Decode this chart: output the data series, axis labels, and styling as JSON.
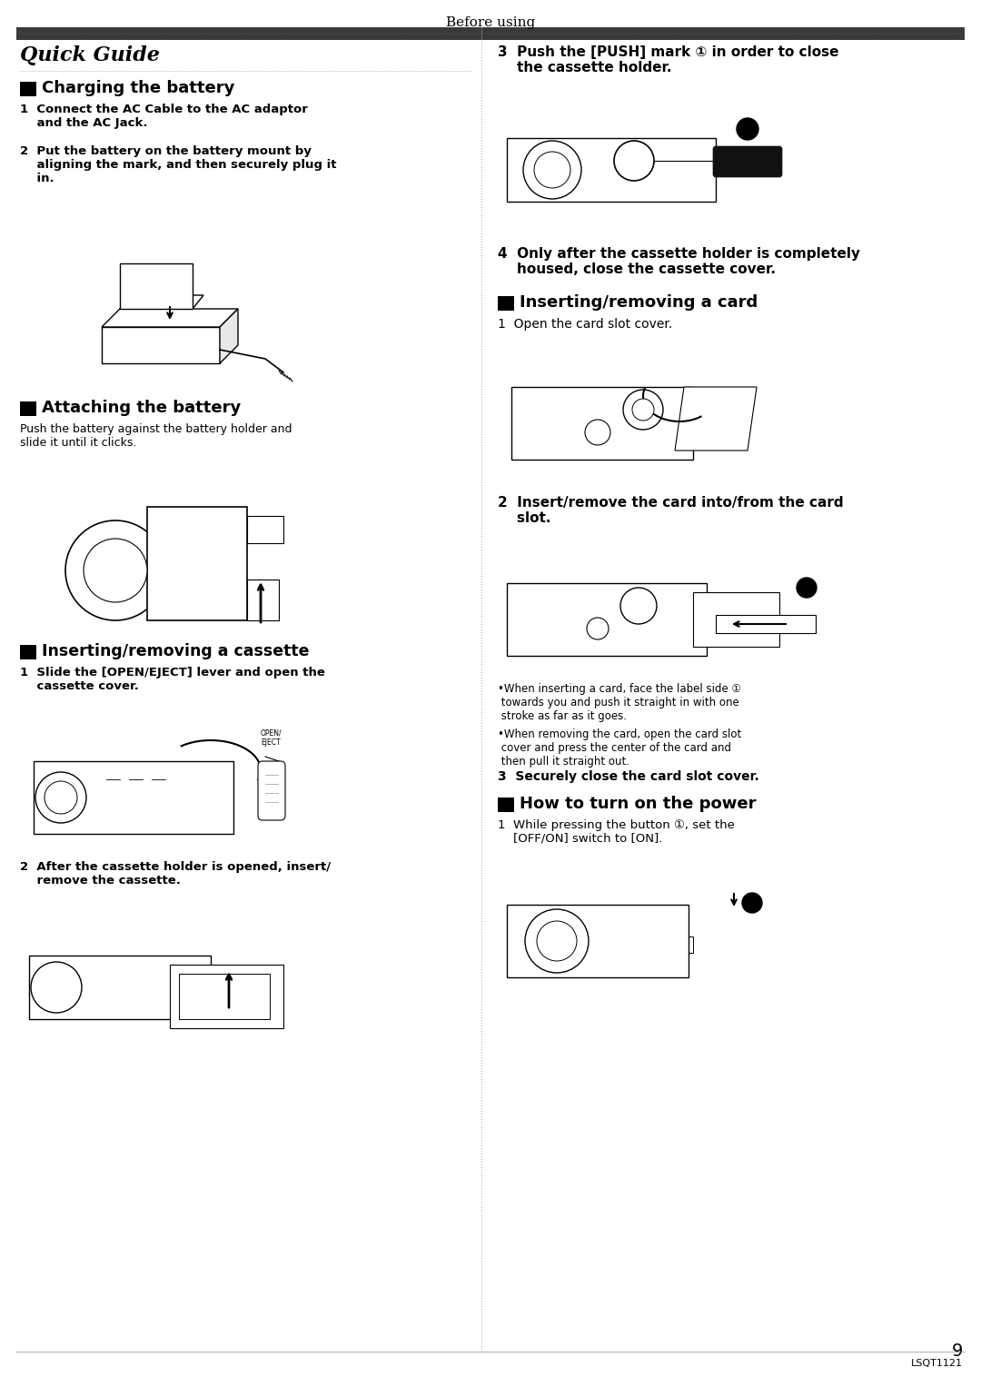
{
  "title": "Before using",
  "background_color": "#ffffff",
  "page_number": "9",
  "page_code": "LSQT1121",
  "fig_w": 10.8,
  "fig_h": 15.38,
  "dpi": 100
}
